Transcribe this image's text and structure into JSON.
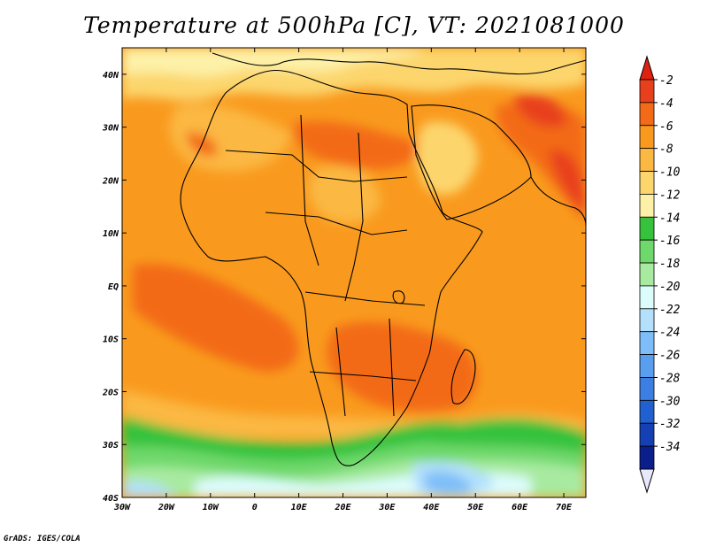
{
  "title": "Temperature at 500hPa [C], VT: 2021081000",
  "credit": "GrADS: IGES/COLA",
  "map": {
    "lon_range": [
      -30,
      75
    ],
    "lat_range": [
      -40,
      45
    ],
    "x_ticks": [
      {
        "value": -30,
        "label": "30W"
      },
      {
        "value": -20,
        "label": "20W"
      },
      {
        "value": -10,
        "label": "10W"
      },
      {
        "value": 0,
        "label": "0"
      },
      {
        "value": 10,
        "label": "10E"
      },
      {
        "value": 20,
        "label": "20E"
      },
      {
        "value": 30,
        "label": "30E"
      },
      {
        "value": 40,
        "label": "40E"
      },
      {
        "value": 50,
        "label": "50E"
      },
      {
        "value": 60,
        "label": "60E"
      },
      {
        "value": 70,
        "label": "70E"
      }
    ],
    "y_ticks": [
      {
        "value": 40,
        "label": "40N"
      },
      {
        "value": 30,
        "label": "30N"
      },
      {
        "value": 20,
        "label": "20N"
      },
      {
        "value": 10,
        "label": "10N"
      },
      {
        "value": 0,
        "label": "EQ"
      },
      {
        "value": -10,
        "label": "10S"
      },
      {
        "value": -20,
        "label": "20S"
      },
      {
        "value": -30,
        "label": "30S"
      },
      {
        "value": -40,
        "label": "40S"
      }
    ]
  },
  "colorbar": {
    "labels": [
      "-2",
      "-4",
      "-6",
      "-8",
      "-10",
      "-12",
      "-14",
      "-16",
      "-18",
      "-20",
      "-22",
      "-24",
      "-26",
      "-28",
      "-30",
      "-32",
      "-34"
    ],
    "colors": [
      "#e8401c",
      "#f36b18",
      "#f99a1e",
      "#fbb842",
      "#fcd66d",
      "#fdf1a8",
      "#36c23c",
      "#6ed86a",
      "#a8eaa0",
      "#dcfcfc",
      "#b4e0fc",
      "#7ebef8",
      "#5a9ef0",
      "#3c7ee2",
      "#2060d0",
      "#1440b4",
      "#0a1e8c"
    ],
    "top_triangle_color": "#e02010",
    "bottom_triangle_color": "#e8e8fc"
  }
}
